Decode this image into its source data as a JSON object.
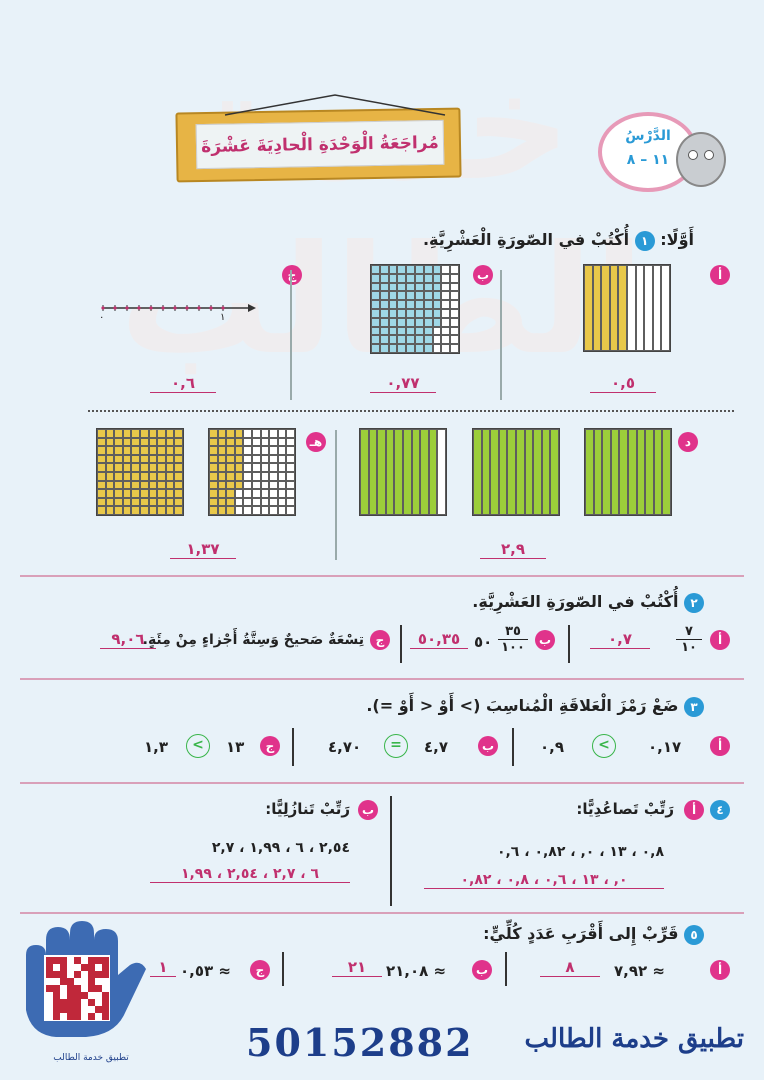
{
  "watermark": "خدمة الطالب",
  "title": "مُراجَعَةُ الْوَحْدَةِ الْحادِيَةَ عَشْرَةَ",
  "lesson": {
    "label": "الدَّرْسُ",
    "number": "١١ – ٨"
  },
  "section1": {
    "heading": "أَوَّلًا:",
    "num": "١",
    "instruction": "أُكْتُبْ في الصّورَةِ الْعَشْرِيَّةِ.",
    "items": [
      {
        "letter": "أ",
        "answer": "٠,٥"
      },
      {
        "letter": "ب",
        "answer": "٠,٧٧"
      },
      {
        "letter": "ج",
        "answer": "٠,٦",
        "line_start": "٠",
        "line_end": "١"
      },
      {
        "letter": "د",
        "answer": "٢,٩"
      },
      {
        "letter": "هـ",
        "answer": "١,٣٧"
      }
    ],
    "fills": {
      "item_a": 0.5,
      "item_b": 0.77,
      "item_d": 2.9,
      "item_e": 1.37
    }
  },
  "section2": {
    "num": "٢",
    "instruction": "أُكْتُبْ في الصّورَةِ العَشْرِيَّةِ.",
    "a": {
      "letter": "أ",
      "numerator": "٧",
      "denominator": "١٠",
      "answer": "٠,٧"
    },
    "b": {
      "letter": "ب",
      "whole": "٥٠",
      "numerator": "٣٥",
      "denominator": "١٠٠",
      "answer": "٥٠,٣٥"
    },
    "c": {
      "letter": "ج",
      "text": "تِسْعَةٌ صَحيحٌ وَسِتَّةُ أَجْزاءٍ مِنْ مِئَةٍ.",
      "answer": "٩,٠٦"
    }
  },
  "section3": {
    "num": "٣",
    "instruction": "ضَعْ رَمْزَ الْعَلاقَةِ الْمُناسِبَ (> أَوْ < أَوْ =).",
    "a": {
      "letter": "أ",
      "left": "٠,١٧",
      "sign": ">",
      "right": "٠,٩"
    },
    "b": {
      "letter": "ب",
      "left": "٤,٧",
      "sign": "=",
      "right": "٤,٧٠"
    },
    "c": {
      "letter": "ج",
      "left": "١٣",
      "sign": ">",
      "right": "١,٣"
    }
  },
  "section4": {
    "num": "٤",
    "a": {
      "letter": "أ",
      "instruction": "رَتِّبْ تَصاعُدِيًّا:",
      "question": "٠,٨ ، ١٣ ، ٠, ، ٠,٨٢ ، ٠,٦",
      "answer": "٠, ، ١٣ ، ٠,٦ ، ٠,٨ ، ٠,٨٢"
    },
    "b": {
      "letter": "ب",
      "instruction": "رَتِّبْ تَنازُلِيًّا:",
      "question": "٢,٥٤ ، ٦ ، ١,٩٩ ، ٢,٧",
      "answer": "٦ ، ٢,٧ ، ٢,٥٤ ، ١,٩٩"
    }
  },
  "section5": {
    "num": "٥",
    "instruction": "قَرِّبْ إِلى أَقْرَبِ عَدَدٍ كُلِّيٍّ:",
    "a": {
      "letter": "أ",
      "question": "≈ ٧,٩٢",
      "answer": "٨"
    },
    "b": {
      "letter": "ب",
      "question": "≈ ٢١,٠٨",
      "answer": "٢١"
    },
    "c": {
      "letter": "ج",
      "question": "≈ ٠,٥٣",
      "answer": "١"
    }
  },
  "footer": {
    "app_name": "تطبيق خدمة الطالب",
    "phone": "50152882",
    "qr_caption": "تطبيق خدمة الطالب"
  },
  "colors": {
    "pink": "#e0338b",
    "blue": "#2a9ad6",
    "answer": "#c0306e",
    "yellow": "#e8c84a",
    "green": "#9cce3a",
    "cyan": "#9fd7e6"
  }
}
